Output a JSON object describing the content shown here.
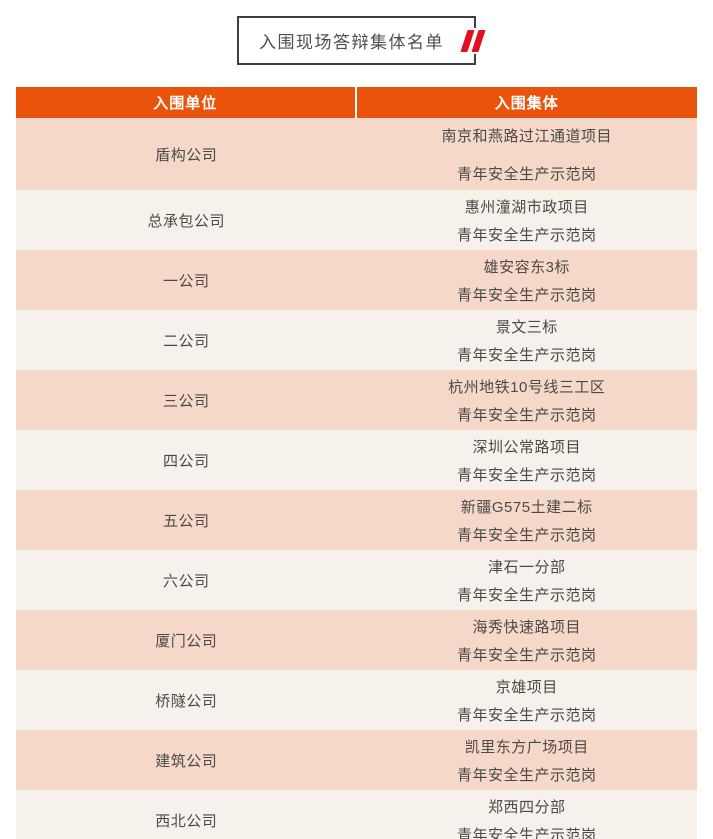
{
  "theme": {
    "orange": "#ea530b",
    "red": "#e30f1f",
    "border": "#3f3f3f",
    "text": "#4a4a4a"
  },
  "title": {
    "text": "入围现场答辩集体名单",
    "quote_icon": "double-quote-icon"
  },
  "table": {
    "header": {
      "col1": "入围单位",
      "col2": "入围集体"
    },
    "row_colors": {
      "dark": "#f5d8c7",
      "light": "#f7f1ec"
    },
    "rows": [
      {
        "unit": "盾构公司",
        "project": "南京和燕路过江通道项目",
        "award": "青年安全生产示范岗",
        "tall": true
      },
      {
        "unit": "总承包公司",
        "project": "惠州潼湖市政项目",
        "award": "青年安全生产示范岗"
      },
      {
        "unit": "一公司",
        "project": "雄安容东3标",
        "award": "青年安全生产示范岗"
      },
      {
        "unit": "二公司",
        "project": "景文三标",
        "award": "青年安全生产示范岗"
      },
      {
        "unit": "三公司",
        "project": "杭州地铁10号线三工区",
        "award": "青年安全生产示范岗"
      },
      {
        "unit": "四公司",
        "project": "深圳公常路项目",
        "award": "青年安全生产示范岗"
      },
      {
        "unit": "五公司",
        "project": "新疆G575土建二标",
        "award": "青年安全生产示范岗"
      },
      {
        "unit": "六公司",
        "project": "津石一分部",
        "award": "青年安全生产示范岗"
      },
      {
        "unit": "厦门公司",
        "project": "海秀快速路项目",
        "award": "青年安全生产示范岗"
      },
      {
        "unit": "桥隧公司",
        "project": "京雄项目",
        "award": "青年安全生产示范岗"
      },
      {
        "unit": "建筑公司",
        "project": "凯里东方广场项目",
        "award": "青年安全生产示范岗"
      },
      {
        "unit": "西北公司",
        "project": "郑西四分部",
        "award": "青年安全生产示范岗"
      }
    ]
  }
}
